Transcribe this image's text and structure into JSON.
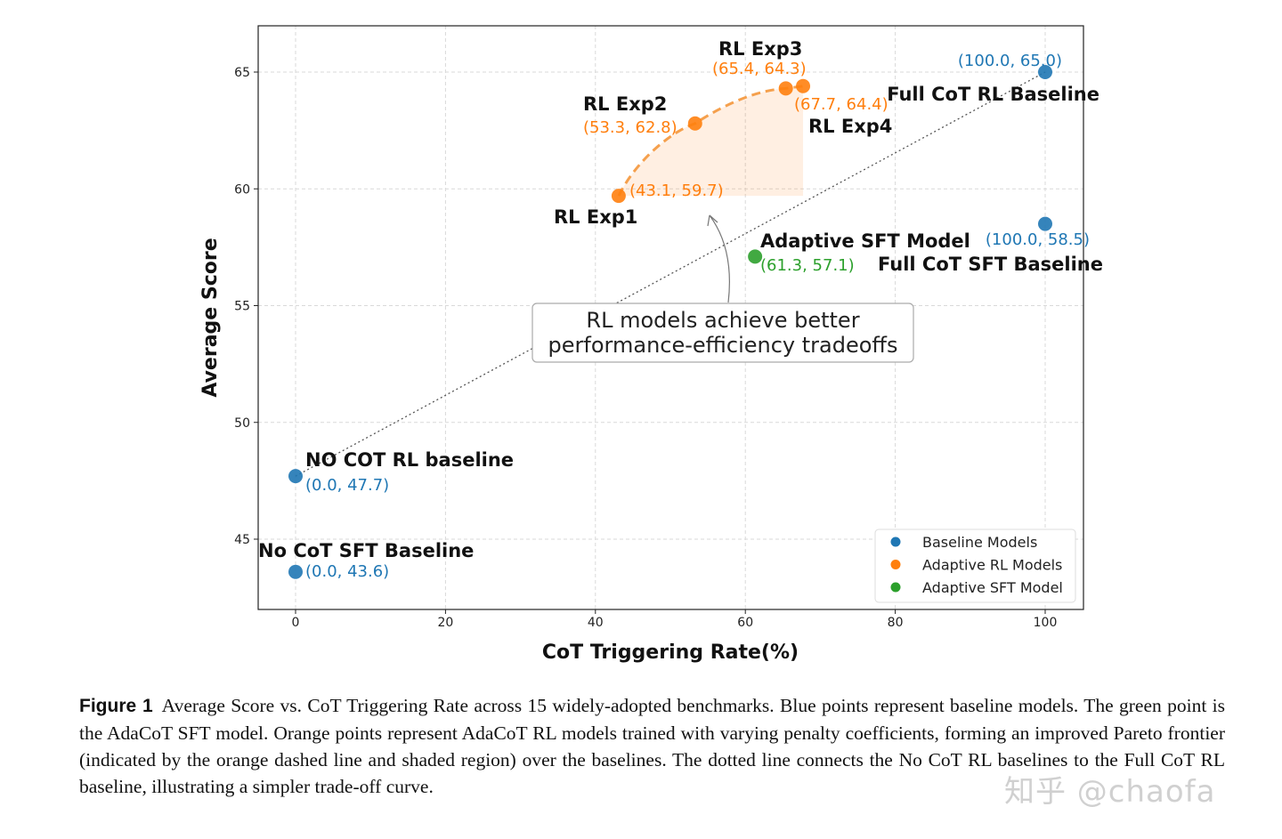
{
  "chart_data": {
    "type": "scatter",
    "xlabel": "CoT Triggering Rate(%)",
    "ylabel": "Average Score",
    "xlim": [
      -5,
      105
    ],
    "ylim": [
      42,
      67
    ],
    "x_ticks": [
      0,
      20,
      40,
      60,
      80,
      100
    ],
    "y_ticks": [
      45,
      50,
      55,
      60,
      65
    ],
    "grid": true,
    "legend_position": "lower-right",
    "series": [
      {
        "name": "Baseline Models",
        "color": "#1f77b4",
        "points": [
          {
            "x": 0.0,
            "y": 47.7,
            "label": "NO COT RL baseline",
            "coord_text": "(0.0, 47.7)"
          },
          {
            "x": 0.0,
            "y": 43.6,
            "label": "No CoT SFT Baseline",
            "coord_text": "(0.0, 43.6)"
          },
          {
            "x": 100.0,
            "y": 65.0,
            "label": "Full CoT RL Baseline",
            "coord_text": "(100.0, 65.0)"
          },
          {
            "x": 100.0,
            "y": 58.5,
            "label": "Full CoT SFT Baseline",
            "coord_text": "(100.0, 58.5)"
          }
        ]
      },
      {
        "name": "Adaptive RL Models",
        "color": "#ff7f0e",
        "points": [
          {
            "x": 43.1,
            "y": 59.7,
            "label": "RL Exp1",
            "coord_text": "(43.1, 59.7)"
          },
          {
            "x": 53.3,
            "y": 62.8,
            "label": "RL Exp2",
            "coord_text": "(53.3, 62.8)"
          },
          {
            "x": 65.4,
            "y": 64.3,
            "label": "RL Exp3",
            "coord_text": "(65.4, 64.3)"
          },
          {
            "x": 67.7,
            "y": 64.4,
            "label": "RL Exp4",
            "coord_text": "(67.7, 64.4)"
          }
        ]
      },
      {
        "name": "Adaptive SFT Model",
        "color": "#2ca02c",
        "points": [
          {
            "x": 61.3,
            "y": 57.1,
            "label": "Adaptive SFT Model",
            "coord_text": "(61.3, 57.1)"
          }
        ]
      }
    ],
    "annotations": {
      "callout_lines": [
        "RL models achieve better",
        "performance-efficiency tradeoffs"
      ]
    }
  },
  "caption": {
    "figure_label": "Figure 1",
    "text": "Average Score vs. CoT Triggering Rate across 15 widely-adopted benchmarks. Blue points represent baseline models. The green point is the AdaCoT SFT model. Orange points represent AdaCoT RL models trained with varying penalty coefficients, forming an improved Pareto frontier (indicated by the orange dashed line and shaded region) over the baselines. The dotted line connects the No CoT RL baselines to the Full CoT RL baseline, illustrating a simpler trade-off curve."
  },
  "watermark": "知乎 @chaofa"
}
